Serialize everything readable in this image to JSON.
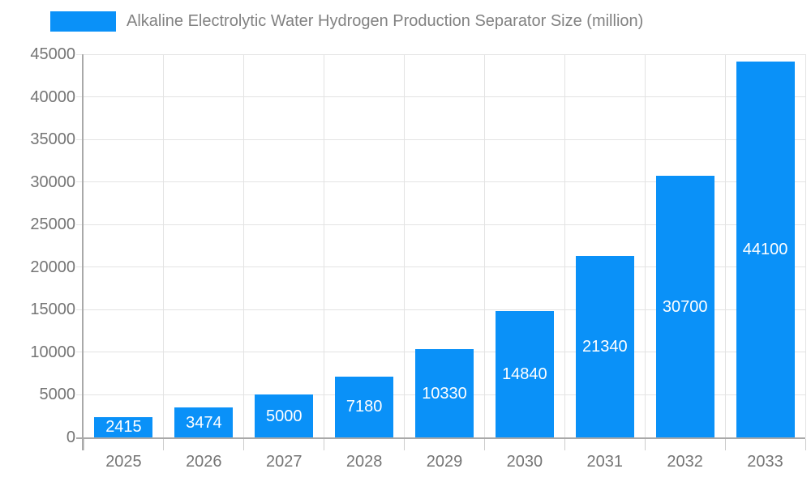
{
  "chart_data": {
    "type": "bar",
    "title": "Alkaline Electrolytic Water Hydrogen Production Separator Size (million)",
    "categories": [
      "2025",
      "2026",
      "2027",
      "2028",
      "2029",
      "2030",
      "2031",
      "2032",
      "2033"
    ],
    "values": [
      2415,
      3474,
      5000,
      7180,
      10330,
      14840,
      21340,
      30700,
      44100
    ],
    "xlabel": "",
    "ylabel": "",
    "ylim": [
      0,
      45000
    ],
    "yticks": [
      0,
      5000,
      10000,
      15000,
      20000,
      25000,
      30000,
      35000,
      40000,
      45000
    ],
    "grid": true,
    "legend_position": "top"
  },
  "colors": {
    "bar": "#0a91f8",
    "bar_label": "#ffffff",
    "axis_line": "#a9a9a9",
    "gridline": "#e3e3e3",
    "minor_tick": "#cccccc",
    "tick_text": "#757575",
    "title_text": "#828282",
    "background": "#ffffff"
  }
}
